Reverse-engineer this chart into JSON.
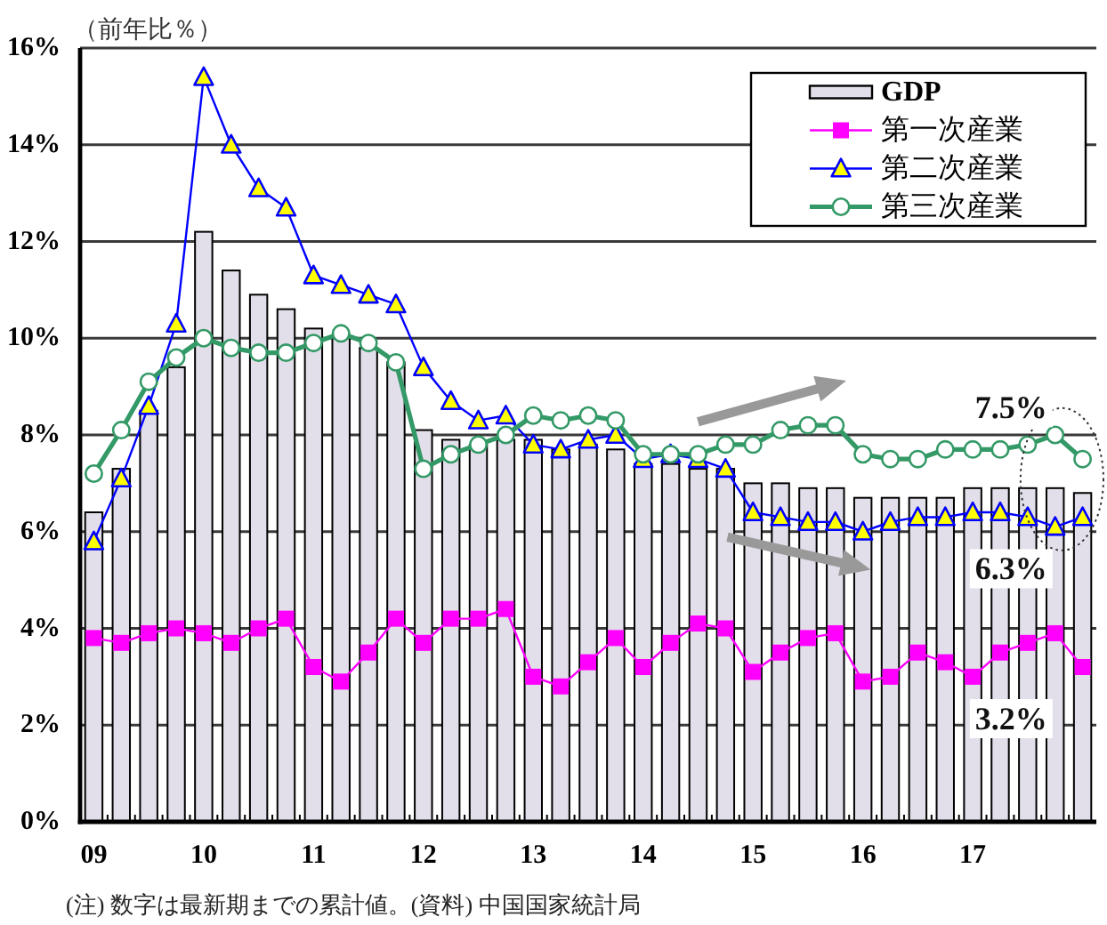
{
  "chart_data": {
    "type": "bar",
    "ylabel": "（前年比％）",
    "categories": [
      "09",
      null,
      null,
      null,
      "10",
      null,
      null,
      null,
      "11",
      null,
      null,
      null,
      "12",
      null,
      null,
      null,
      "13",
      null,
      null,
      null,
      "14",
      null,
      null,
      null,
      "15",
      null,
      null,
      null,
      "16",
      null,
      null,
      null,
      "17",
      null,
      null,
      null,
      null
    ],
    "ylim": [
      0,
      16
    ],
    "yticks": [
      {
        "value": 0,
        "label": "0%"
      },
      {
        "value": 2,
        "label": "2%"
      },
      {
        "value": 4,
        "label": "4%"
      },
      {
        "value": 6,
        "label": "6%"
      },
      {
        "value": 8,
        "label": "8%"
      },
      {
        "value": 10,
        "label": "10%"
      },
      {
        "value": 12,
        "label": "12%"
      },
      {
        "value": 14,
        "label": "14%"
      },
      {
        "value": 16,
        "label": "16%"
      }
    ],
    "grid": "y",
    "legend": "top right",
    "annotations": [
      "(注) 数字は最新期までの累計値。(資料) 中国国家統計局"
    ],
    "series": [
      {
        "name": "GDP",
        "color": "#e3dfea",
        "values": [
          6.4,
          7.3,
          8.5,
          9.4,
          12.2,
          11.4,
          10.9,
          10.6,
          10.2,
          10.0,
          9.8,
          9.5,
          8.1,
          7.9,
          7.8,
          7.9,
          7.9,
          7.7,
          7.8,
          7.7,
          7.4,
          7.4,
          7.3,
          7.3,
          7.0,
          7.0,
          6.9,
          6.9,
          6.7,
          6.7,
          6.7,
          6.7,
          6.9,
          6.9,
          6.9,
          6.9,
          6.8
        ]
      },
      {
        "name": "第一次産業",
        "type": "line",
        "color": "#ff00ff",
        "marker": "square",
        "values": [
          3.8,
          3.7,
          3.9,
          4.0,
          3.9,
          3.7,
          4.0,
          4.2,
          3.2,
          2.9,
          3.5,
          4.2,
          3.7,
          4.2,
          4.2,
          4.4,
          3.0,
          2.8,
          3.3,
          3.8,
          3.2,
          3.7,
          4.1,
          4.0,
          3.1,
          3.5,
          3.8,
          3.9,
          2.9,
          3.0,
          3.5,
          3.3,
          3.0,
          3.5,
          3.7,
          3.9,
          3.2
        ],
        "value_labels": [
          null,
          null,
          null,
          null,
          null,
          null,
          null,
          null,
          null,
          null,
          null,
          null,
          null,
          null,
          null,
          null,
          null,
          null,
          null,
          null,
          null,
          null,
          null,
          null,
          null,
          null,
          null,
          null,
          null,
          null,
          null,
          null,
          null,
          null,
          null,
          null,
          "3.2%"
        ]
      },
      {
        "name": "第二次産業",
        "type": "line",
        "color": "#0000ff",
        "marker": "triangle",
        "values": [
          5.8,
          7.1,
          8.6,
          10.3,
          15.4,
          14.0,
          13.1,
          12.7,
          11.3,
          11.1,
          10.9,
          10.7,
          9.4,
          8.7,
          8.3,
          8.4,
          7.8,
          7.7,
          7.9,
          8.0,
          7.5,
          7.6,
          7.5,
          7.3,
          6.4,
          6.3,
          6.2,
          6.2,
          6.0,
          6.2,
          6.3,
          6.3,
          6.4,
          6.4,
          6.3,
          6.1,
          6.3
        ],
        "value_labels": [
          null,
          null,
          null,
          null,
          null,
          null,
          null,
          null,
          null,
          null,
          null,
          null,
          null,
          null,
          null,
          null,
          null,
          null,
          null,
          null,
          null,
          null,
          null,
          null,
          null,
          null,
          null,
          null,
          null,
          null,
          null,
          null,
          null,
          null,
          null,
          null,
          "6.3%"
        ]
      },
      {
        "name": "第三次産業",
        "type": "line",
        "color": "#339966",
        "marker": "circle",
        "values": [
          7.2,
          8.1,
          9.1,
          9.6,
          10.0,
          9.8,
          9.7,
          9.7,
          9.9,
          10.1,
          9.9,
          9.5,
          7.3,
          7.6,
          7.8,
          8.0,
          8.4,
          8.3,
          8.4,
          8.3,
          7.6,
          7.6,
          7.6,
          7.8,
          7.8,
          8.1,
          8.2,
          8.2,
          7.6,
          7.5,
          7.5,
          7.7,
          7.7,
          7.7,
          7.8,
          8.0,
          7.5
        ],
        "value_labels": [
          null,
          null,
          null,
          null,
          null,
          null,
          null,
          null,
          null,
          null,
          null,
          null,
          null,
          null,
          null,
          null,
          null,
          null,
          null,
          null,
          null,
          null,
          null,
          null,
          null,
          null,
          null,
          null,
          null,
          null,
          null,
          null,
          null,
          null,
          null,
          null,
          "7.5%"
        ]
      }
    ]
  }
}
